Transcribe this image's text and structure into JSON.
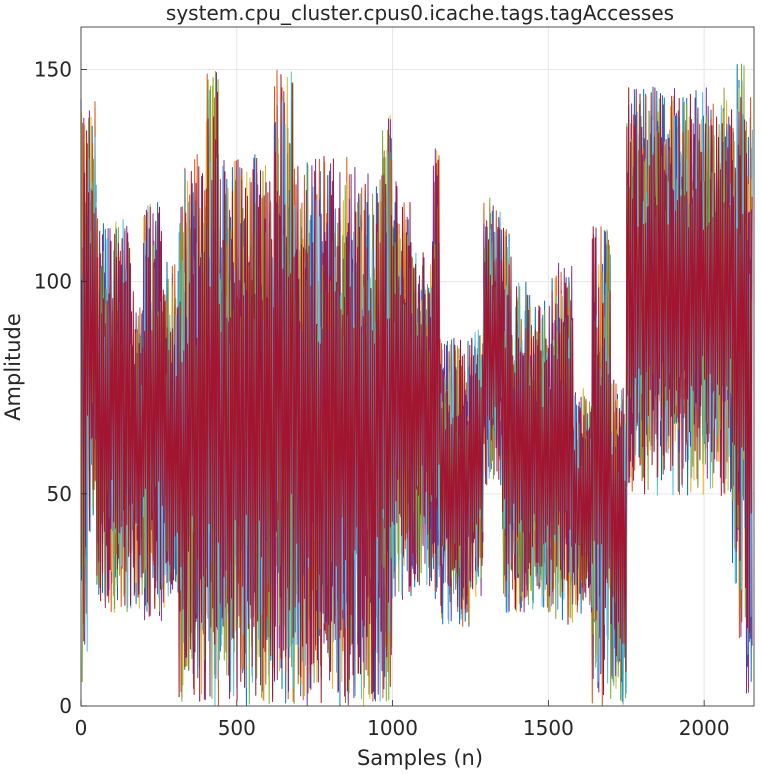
{
  "chart_data": {
    "type": "line",
    "title": "system.cpu_cluster.cpus0.icache.tags.tagAccesses",
    "xlabel": "Samples (n)",
    "ylabel": "Amplitude",
    "xlim": [
      0,
      2160
    ],
    "ylim": [
      0,
      160
    ],
    "xticks": [
      0,
      500,
      1000,
      1500,
      2000
    ],
    "yticks": [
      0,
      50,
      100,
      150
    ],
    "grid": true,
    "legend": "none",
    "series_colors": [
      "#0072BD",
      "#D95319",
      "#EDB120",
      "#7E2F8E",
      "#77AC30",
      "#4DBEEE",
      "#A2142F"
    ],
    "segments": [
      {
        "x0": 0,
        "x1": 20,
        "min": 5,
        "max": 146
      },
      {
        "x0": 20,
        "x1": 50,
        "min": 40,
        "max": 144
      },
      {
        "x0": 50,
        "x1": 160,
        "min": 22,
        "max": 115
      },
      {
        "x0": 160,
        "x1": 200,
        "min": 22,
        "max": 98
      },
      {
        "x0": 200,
        "x1": 260,
        "min": 20,
        "max": 119
      },
      {
        "x0": 260,
        "x1": 310,
        "min": 22,
        "max": 105
      },
      {
        "x0": 310,
        "x1": 330,
        "min": 0,
        "max": 118
      },
      {
        "x0": 330,
        "x1": 400,
        "min": 0,
        "max": 130
      },
      {
        "x0": 400,
        "x1": 440,
        "min": 0,
        "max": 150
      },
      {
        "x0": 440,
        "x1": 620,
        "min": 0,
        "max": 130
      },
      {
        "x0": 620,
        "x1": 680,
        "min": 0,
        "max": 150
      },
      {
        "x0": 680,
        "x1": 760,
        "min": 0,
        "max": 130
      },
      {
        "x0": 760,
        "x1": 860,
        "min": 0,
        "max": 130
      },
      {
        "x0": 860,
        "x1": 960,
        "min": 0,
        "max": 127
      },
      {
        "x0": 960,
        "x1": 1000,
        "min": 0,
        "max": 140
      },
      {
        "x0": 1000,
        "x1": 1060,
        "min": 25,
        "max": 125
      },
      {
        "x0": 1060,
        "x1": 1130,
        "min": 28,
        "max": 110
      },
      {
        "x0": 1130,
        "x1": 1150,
        "min": 25,
        "max": 133
      },
      {
        "x0": 1150,
        "x1": 1250,
        "min": 18,
        "max": 87
      },
      {
        "x0": 1250,
        "x1": 1290,
        "min": 25,
        "max": 90
      },
      {
        "x0": 1290,
        "x1": 1320,
        "min": 52,
        "max": 120
      },
      {
        "x0": 1320,
        "x1": 1350,
        "min": 52,
        "max": 118
      },
      {
        "x0": 1350,
        "x1": 1380,
        "min": 22,
        "max": 115
      },
      {
        "x0": 1380,
        "x1": 1450,
        "min": 22,
        "max": 100
      },
      {
        "x0": 1450,
        "x1": 1510,
        "min": 22,
        "max": 96
      },
      {
        "x0": 1510,
        "x1": 1580,
        "min": 18,
        "max": 105
      },
      {
        "x0": 1580,
        "x1": 1640,
        "min": 20,
        "max": 75
      },
      {
        "x0": 1640,
        "x1": 1700,
        "min": 0,
        "max": 113
      },
      {
        "x0": 1700,
        "x1": 1720,
        "min": 0,
        "max": 78
      },
      {
        "x0": 1720,
        "x1": 1750,
        "min": 0,
        "max": 75
      },
      {
        "x0": 1750,
        "x1": 2090,
        "min": 49,
        "max": 146
      },
      {
        "x0": 2090,
        "x1": 2130,
        "min": 15,
        "max": 152
      },
      {
        "x0": 2130,
        "x1": 2155,
        "min": 2,
        "max": 144
      }
    ]
  }
}
